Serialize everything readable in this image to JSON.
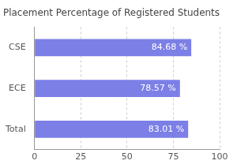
{
  "chart_data": {
    "type": "bar",
    "orientation": "horizontal",
    "title": "Placement Percentage of Registered Students",
    "categories": [
      "CSE",
      "ECE",
      "Total"
    ],
    "values": [
      84.68,
      78.57,
      83.01
    ],
    "value_labels": [
      "84.68 %",
      "78.57 %",
      "83.01 %"
    ],
    "data_labels": true,
    "color": "#7b7fe6",
    "xlim": [
      0,
      100
    ],
    "xticks": [
      0,
      25,
      50,
      75,
      100
    ],
    "grid": true
  }
}
